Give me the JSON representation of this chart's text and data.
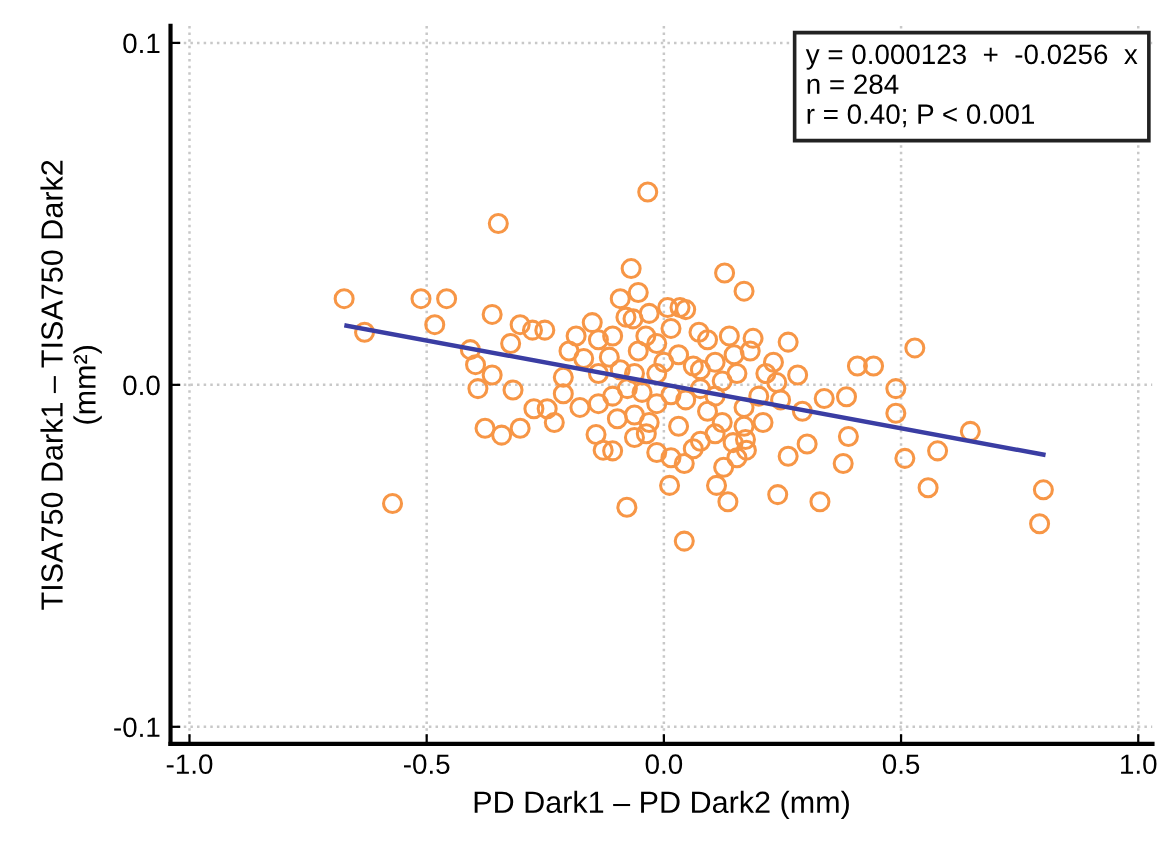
{
  "chart_data": {
    "type": "scatter",
    "xlabel": "PD Dark1 – PD Dark2 (mm)",
    "ylabel": "TISA750 Dark1 – TISA750 Dark2\n(mm²)",
    "xlim": [
      -1.04,
      1.03
    ],
    "ylim": [
      -0.105,
      0.105
    ],
    "xticks": [
      {
        "value": -1.0,
        "label": "-1.0"
      },
      {
        "value": -0.5,
        "label": "-0.5"
      },
      {
        "value": 0.0,
        "label": "0.0"
      },
      {
        "value": 0.5,
        "label": "0.5"
      },
      {
        "value": 1.0,
        "label": "1.0"
      }
    ],
    "yticks": [
      {
        "value": -0.1,
        "label": "-0.1"
      },
      {
        "value": 0.0,
        "label": "0.0"
      },
      {
        "value": 0.1,
        "label": "0.1"
      }
    ],
    "grid": true,
    "marker": "circle",
    "annotations": [
      "y = 0.000123  +  -0.0256  x\nn = 284\nr = 0.40; P < 0.001"
    ],
    "series": [
      {
        "color": "#f79646",
        "x": [
          -0.674,
          -0.631,
          -0.512,
          -0.458,
          -0.483,
          -0.362,
          -0.349,
          -0.572,
          -0.034,
          -0.069,
          -0.054,
          0.128,
          0.169,
          0.529,
          0.408,
          0.442,
          0.489,
          0.489,
          0.646,
          0.577,
          0.508,
          0.557,
          0.8,
          0.792,
          0.329,
          0.24,
          0.135,
          0.111,
          0.012,
          0.043,
          -0.078,
          0.378,
          0.302,
          0.262,
          0.389,
          0.385,
          0.338,
          0.292,
          0.282,
          0.262,
          0.188,
          -0.377,
          -0.342,
          -0.303,
          -0.231,
          -0.274,
          -0.246,
          -0.318,
          -0.392,
          -0.408,
          -0.397,
          -0.362,
          -0.303,
          -0.277,
          -0.251,
          -0.323,
          -0.212,
          -0.212,
          -0.177,
          -0.143,
          -0.128,
          -0.108,
          -0.037,
          -0.015,
          0.015,
          0.043,
          0.062,
          0.126,
          0.154,
          0.172,
          0.209,
          0.246,
          0.231,
          0.238,
          0.148,
          0.182,
          0.092,
          0.074,
          0.034,
          0.046,
          0.008,
          -0.031,
          -0.065,
          -0.092,
          -0.08,
          -0.151,
          -0.185,
          -0.138,
          -0.108,
          -0.115,
          -0.169,
          -0.2,
          -0.138,
          -0.092,
          -0.054,
          -0.038,
          -0.015,
          0.015,
          0.031,
          0.062,
          0.108,
          0.154,
          0.123,
          0.077,
          0.046,
          0.015,
          -0.015,
          -0.046,
          -0.077,
          -0.108,
          -0.138,
          -0.062,
          -0.031,
          0.092,
          0.123,
          0.169,
          0.2,
          0.215,
          0.108,
          0.077,
          0.031,
          -0.062,
          -0.098,
          -0.015,
          0.0,
          -0.062,
          0.108,
          0.169,
          0.146,
          0.174,
          0.077,
          0.138
        ],
        "values": [
          0.0252,
          0.0154,
          0.0252,
          0.0252,
          0.0176,
          0.0206,
          0.0472,
          -0.0347,
          0.0564,
          0.034,
          0.027,
          0.0327,
          0.0274,
          0.0108,
          0.0055,
          0.0055,
          -0.0011,
          -0.0083,
          -0.0136,
          -0.0193,
          -0.0215,
          -0.0301,
          -0.0307,
          -0.0406,
          -0.0342,
          -0.0321,
          -0.0342,
          -0.0294,
          -0.0294,
          -0.0457,
          -0.0358,
          -0.023,
          -0.0173,
          -0.0209,
          -0.0151,
          -0.0035,
          -0.004,
          -0.0077,
          0.0029,
          0.0125,
          0.0136,
          -0.0127,
          -0.0147,
          -0.0127,
          -0.011,
          -0.007,
          -0.007,
          -0.0015,
          -0.0011,
          0.0103,
          0.0059,
          0.0029,
          0.0176,
          0.016,
          0.016,
          0.0121,
          0.0022,
          -0.0026,
          -0.0066,
          -0.0145,
          -0.0191,
          -0.0193,
          -0.0143,
          -0.0198,
          -0.0213,
          -0.023,
          -0.0187,
          -0.0241,
          -0.0213,
          -0.016,
          -0.011,
          -0.0044,
          0.0066,
          0.0007,
          0.0088,
          0.0099,
          0.0132,
          0.0154,
          0.0226,
          0.022,
          0.0226,
          0.0209,
          0.0193,
          0.0252,
          0.0198,
          0.0182,
          0.0143,
          0.0132,
          0.0143,
          0.0081,
          0.0077,
          0.0099,
          0.0033,
          0.0044,
          0.0099,
          0.0143,
          0.0121,
          0.0165,
          0.0088,
          0.0055,
          0.0066,
          0.0033,
          0.0011,
          -0.0011,
          -0.0044,
          -0.0029,
          -0.0055,
          -0.0022,
          -0.0011,
          -0.0033,
          -0.0055,
          -0.0088,
          -0.011,
          -0.0077,
          -0.011,
          -0.0066,
          -0.0033,
          0.0033,
          -0.0143,
          -0.0165,
          -0.0121,
          -0.0154,
          -0.0099,
          0.0033,
          0.0066,
          0.0033,
          -0.0033,
          -0.0121,
          -0.0169,
          -0.0191,
          0.0044,
          0.0143
        ]
      },
      {
        "type": "line",
        "color": "#3a3da3",
        "marker": "none",
        "line_style": "solid",
        "x": [
          -0.669,
          0.8
        ],
        "values": [
          0.0173,
          -0.0204
        ]
      }
    ]
  }
}
